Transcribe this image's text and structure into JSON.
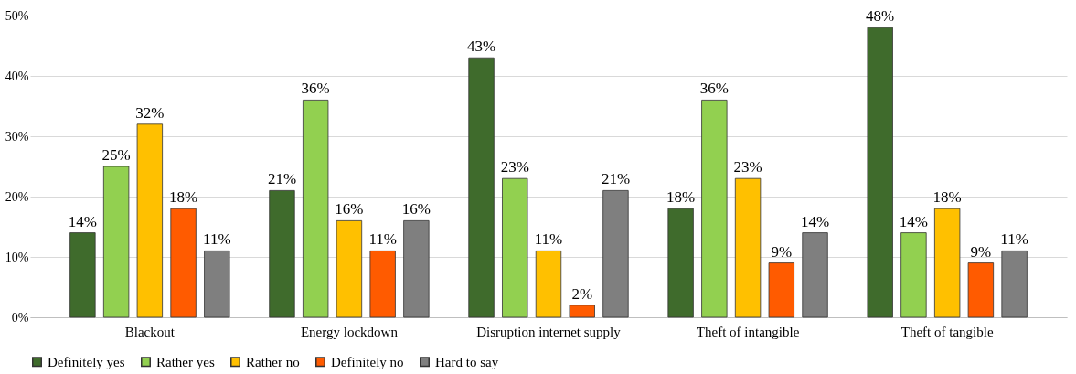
{
  "chart_data": {
    "type": "bar",
    "categories": [
      "Blackout",
      "Energy lockdown",
      "Disruption internet supply",
      "Theft of intangible",
      "Theft of tangible"
    ],
    "series": [
      {
        "name": "Definitely yes",
        "color": "#3f6b2c",
        "values": [
          14,
          21,
          43,
          18,
          48
        ],
        "value_labels": [
          "14%",
          "21%",
          "43%",
          "18%",
          "48%"
        ]
      },
      {
        "name": "Rather yes",
        "color": "#92d050",
        "values": [
          25,
          36,
          23,
          36,
          14
        ],
        "value_labels": [
          "25%",
          "36%",
          "23%",
          "36%",
          "14%"
        ]
      },
      {
        "name": "Rather no",
        "color": "#ffc000",
        "values": [
          32,
          16,
          11,
          23,
          18
        ],
        "value_labels": [
          "32%",
          "16%",
          "11%",
          "23%",
          "18%"
        ]
      },
      {
        "name": "Definitely no",
        "color": "#ff5b00",
        "values": [
          18,
          11,
          2,
          9,
          9
        ],
        "value_labels": [
          "18%",
          "11%",
          "2%",
          "9%",
          "9%"
        ]
      },
      {
        "name": "Hard to say",
        "color": "#7f7f7f",
        "values": [
          11,
          16,
          21,
          14,
          11
        ],
        "value_labels": [
          "11%",
          "16%",
          "21%",
          "14%",
          "11%"
        ]
      }
    ],
    "ylim": [
      0,
      50
    ],
    "yticks": [
      {
        "value": 0,
        "label": "0%"
      },
      {
        "value": 10,
        "label": "10%"
      },
      {
        "value": 20,
        "label": "20%"
      },
      {
        "value": 30,
        "label": "30%"
      },
      {
        "value": 40,
        "label": "40%"
      },
      {
        "value": 50,
        "label": "50%"
      }
    ],
    "grid": "y",
    "legend": "bottom"
  }
}
